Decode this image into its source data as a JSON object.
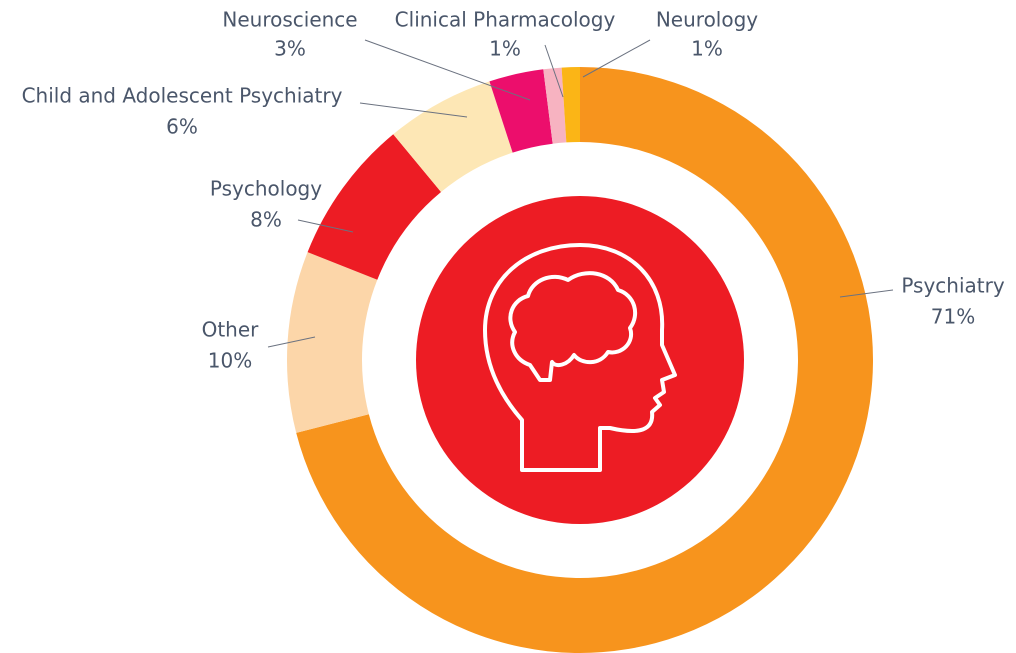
{
  "chart_data": {
    "type": "donut",
    "categories": [
      "Psychiatry",
      "Other",
      "Psychology",
      "Child and Adolescent Psychiatry",
      "Neuroscience",
      "Clinical Pharmacology",
      "Neurology"
    ],
    "values": [
      71,
      10,
      8,
      6,
      3,
      1,
      1
    ],
    "value_labels": [
      "71%",
      "10%",
      "8%",
      "6%",
      "3%",
      "1%",
      "1%"
    ],
    "colors": [
      "#f7941d",
      "#fcd6a9",
      "#ed1c24",
      "#fde7b5",
      "#ec0e6c",
      "#f7b3c1",
      "#fbb516"
    ]
  }
}
